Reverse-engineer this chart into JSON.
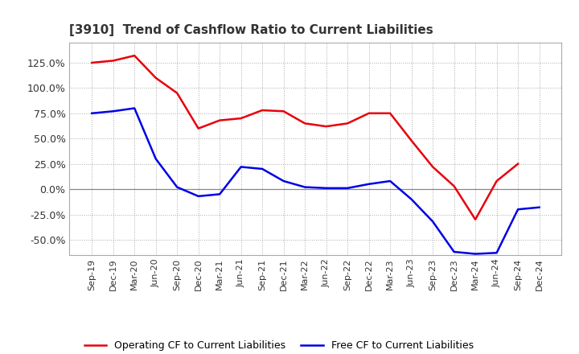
{
  "title": "[3910]  Trend of Cashflow Ratio to Current Liabilities",
  "x_labels": [
    "Sep-19",
    "Dec-19",
    "Mar-20",
    "Jun-20",
    "Sep-20",
    "Dec-20",
    "Mar-21",
    "Jun-21",
    "Sep-21",
    "Dec-21",
    "Mar-22",
    "Jun-22",
    "Sep-22",
    "Dec-22",
    "Mar-23",
    "Jun-23",
    "Sep-23",
    "Dec-23",
    "Mar-24",
    "Jun-24",
    "Sep-24",
    "Dec-24"
  ],
  "operating_cf": [
    125.0,
    127.0,
    132.0,
    110.0,
    95.0,
    60.0,
    68.0,
    70.0,
    78.0,
    77.0,
    65.0,
    62.0,
    65.0,
    75.0,
    75.0,
    48.0,
    22.0,
    3.0,
    -30.0,
    8.0,
    25.0,
    null
  ],
  "free_cf": [
    75.0,
    77.0,
    80.0,
    30.0,
    2.0,
    -7.0,
    -5.0,
    22.0,
    20.0,
    8.0,
    2.0,
    1.0,
    1.0,
    5.0,
    8.0,
    -10.0,
    -32.0,
    -62.0,
    -64.0,
    -63.0,
    -20.0,
    -18.0
  ],
  "operating_color": "#e8000d",
  "free_color": "#0000e8",
  "ylim": [
    -65,
    145
  ],
  "yticks": [
    -50.0,
    -25.0,
    0.0,
    25.0,
    50.0,
    75.0,
    100.0,
    125.0
  ],
  "grid_color": "#aaaaaa",
  "background_color": "#ffffff",
  "legend_op": "Operating CF to Current Liabilities",
  "legend_free": "Free CF to Current Liabilities"
}
